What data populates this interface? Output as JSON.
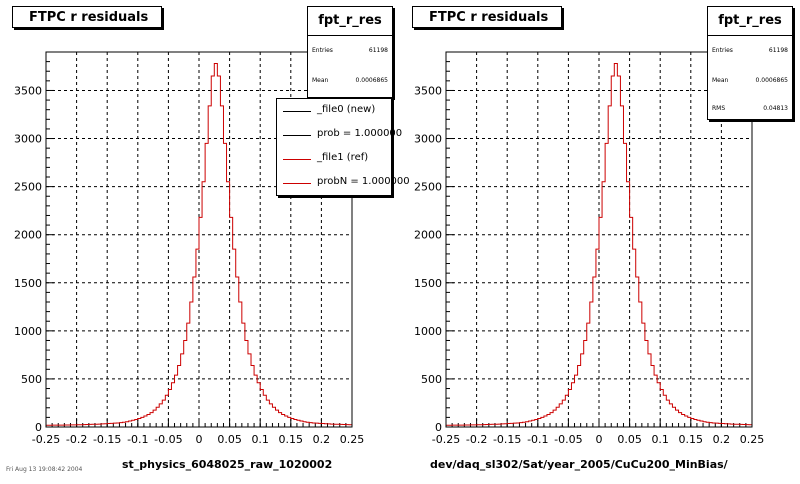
{
  "chart_data": [
    {
      "type": "bar",
      "title": "FTPC r residuals",
      "xlabel": "st_physics_6048025_raw_1020002",
      "xlim": [
        -0.25,
        0.25
      ],
      "ylim": [
        0,
        3900
      ],
      "grid": true,
      "x_ticks": [
        "-0.25",
        "-0.2",
        "-0.15",
        "-0.1",
        "-0.05",
        "0",
        "0.05",
        "0.1",
        "0.15",
        "0.2",
        "0.25"
      ],
      "y_ticks": [
        "0",
        "500",
        "1000",
        "1500",
        "2000",
        "2500",
        "3000",
        "3500"
      ],
      "stats": {
        "name": "fpt_r_res",
        "rows": [
          {
            "label": "Entries",
            "value": "61198"
          },
          {
            "label": "Mean",
            "value": "0.0006865"
          }
        ]
      },
      "legend": {
        "placement": "top-right",
        "entries": [
          {
            "label": "_file0 (new)",
            "color": "#000000"
          },
          {
            "label": "prob = 1.000000",
            "color": "#000000"
          },
          {
            "label": "_file1 (ref)",
            "color": "#cc0000"
          },
          {
            "label": "probN = 1.000000",
            "color": "#cc0000"
          }
        ]
      },
      "series": [
        {
          "name": "_file1 (ref)",
          "color": "#cc0000",
          "bin_width": 0.005,
          "x_start": -0.25,
          "values": [
            18,
            18,
            19,
            19,
            20,
            20,
            21,
            21,
            22,
            22,
            23,
            24,
            25,
            26,
            27,
            28,
            29,
            30,
            32,
            34,
            36,
            38,
            40,
            42,
            46,
            50,
            55,
            62,
            70,
            78,
            88,
            100,
            115,
            130,
            150,
            175,
            205,
            240,
            280,
            330,
            390,
            460,
            540,
            640,
            760,
            900,
            1080,
            1300,
            1560,
            1850,
            2180,
            2550,
            2950,
            3340,
            3650,
            3780,
            3650,
            3340,
            2950,
            2550,
            2180,
            1850,
            1560,
            1300,
            1080,
            900,
            760,
            640,
            540,
            460,
            390,
            330,
            280,
            240,
            205,
            175,
            150,
            130,
            115,
            100,
            88,
            78,
            70,
            62,
            55,
            50,
            46,
            42,
            40,
            38,
            36,
            34,
            32,
            30,
            29,
            28,
            27,
            26,
            25,
            24
          ]
        }
      ]
    },
    {
      "type": "bar",
      "title": "FTPC r residuals",
      "xlabel": "dev/daq_sl302/Sat/year_2005/CuCu200_MinBias/",
      "xlim": [
        -0.25,
        0.25
      ],
      "ylim": [
        0,
        3900
      ],
      "grid": true,
      "x_ticks": [
        "-0.25",
        "-0.2",
        "-0.15",
        "-0.1",
        "-0.05",
        "0",
        "0.05",
        "0.1",
        "0.15",
        "0.2",
        "0.25"
      ],
      "y_ticks": [
        "0",
        "500",
        "1000",
        "1500",
        "2000",
        "2500",
        "3000",
        "3500"
      ],
      "stats": {
        "name": "fpt_r_res",
        "rows": [
          {
            "label": "Entries",
            "value": "61198"
          },
          {
            "label": "Mean",
            "value": "0.0006865"
          },
          {
            "label": "RMS",
            "value": "0.04813"
          }
        ]
      },
      "series": [
        {
          "name": "",
          "color": "#cc0000",
          "bin_width": 0.005,
          "x_start": -0.25,
          "values": [
            18,
            18,
            19,
            19,
            20,
            20,
            21,
            21,
            22,
            22,
            23,
            24,
            25,
            26,
            27,
            28,
            29,
            30,
            32,
            34,
            36,
            38,
            40,
            42,
            46,
            50,
            55,
            62,
            70,
            78,
            88,
            100,
            115,
            130,
            150,
            175,
            205,
            240,
            280,
            330,
            390,
            460,
            540,
            640,
            760,
            900,
            1080,
            1300,
            1560,
            1850,
            2180,
            2550,
            2950,
            3340,
            3650,
            3780,
            3650,
            3340,
            2950,
            2550,
            2180,
            1850,
            1560,
            1300,
            1080,
            900,
            760,
            640,
            540,
            460,
            390,
            330,
            280,
            240,
            205,
            175,
            150,
            130,
            115,
            100,
            88,
            78,
            70,
            62,
            55,
            50,
            46,
            42,
            40,
            38,
            36,
            34,
            32,
            30,
            29,
            28,
            27,
            26,
            25,
            24
          ]
        }
      ]
    }
  ],
  "footer": "Fri Aug 13 19:08:42 2004"
}
